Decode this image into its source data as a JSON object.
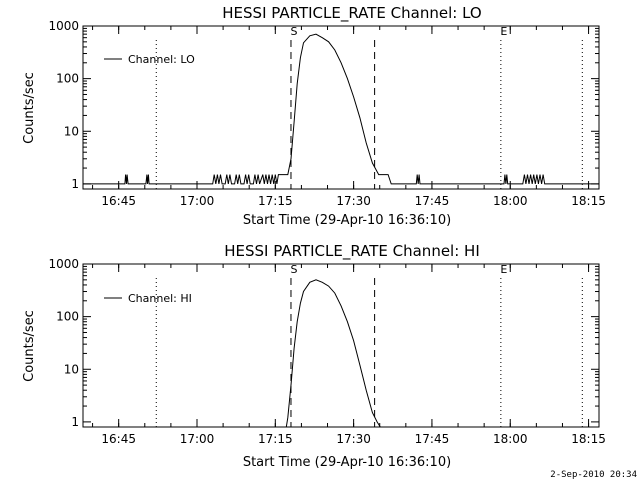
{
  "footer_timestamp": "2-Sep-2010 20:34",
  "chart_data": [
    {
      "type": "line",
      "title": "HESSI PARTICLE_RATE Channel: LO",
      "xlabel": "Start Time (29-Apr-10 16:36:10)",
      "ylabel": "Counts/sec",
      "yscale": "log",
      "xlim": [
        16.6361,
        18.2833
      ],
      "ylim": [
        0.8,
        1000
      ],
      "xticks": [
        {
          "value": 16.75,
          "label": "16:45"
        },
        {
          "value": 17.0,
          "label": "17:00"
        },
        {
          "value": 17.25,
          "label": "17:15"
        },
        {
          "value": 17.5,
          "label": "17:30"
        },
        {
          "value": 17.75,
          "label": "17:45"
        },
        {
          "value": 18.0,
          "label": "18:00"
        },
        {
          "value": 18.25,
          "label": "18:15"
        }
      ],
      "yticks": [
        {
          "value": 1,
          "label": "1"
        },
        {
          "value": 10,
          "label": "10"
        },
        {
          "value": 100,
          "label": "100"
        },
        {
          "value": 1000,
          "label": "1000"
        }
      ],
      "legend": {
        "position": "top-left",
        "entries": [
          "Channel: LO"
        ]
      },
      "markers": [
        {
          "label": "S",
          "x": 17.3,
          "style": "dashed"
        },
        {
          "label": "",
          "x": 17.567,
          "style": "dashed"
        },
        {
          "label": "",
          "x": 16.87,
          "style": "dotted"
        },
        {
          "label": "E",
          "x": 17.97,
          "style": "dotted"
        },
        {
          "label": "",
          "x": 18.23,
          "style": "dotted"
        }
      ],
      "series": [
        {
          "name": "Channel: LO",
          "x": [
            16.636,
            16.77,
            16.772,
            16.775,
            16.777,
            16.78,
            16.837,
            16.84,
            16.842,
            16.845,
            16.847,
            17.05,
            17.055,
            17.06,
            17.065,
            17.07,
            17.075,
            17.08,
            17.09,
            17.095,
            17.1,
            17.105,
            17.11,
            17.12,
            17.125,
            17.13,
            17.135,
            17.14,
            17.15,
            17.155,
            17.16,
            17.165,
            17.17,
            17.18,
            17.185,
            17.19,
            17.195,
            17.2,
            17.21,
            17.215,
            17.22,
            17.225,
            17.23,
            17.235,
            17.24,
            17.245,
            17.25,
            17.255,
            17.26,
            17.27,
            17.28,
            17.29,
            17.3,
            17.31,
            17.32,
            17.33,
            17.34,
            17.36,
            17.38,
            17.4,
            17.42,
            17.44,
            17.46,
            17.48,
            17.5,
            17.52,
            17.54,
            17.56,
            17.58,
            17.59,
            17.6,
            17.61,
            17.62,
            17.63,
            17.633,
            17.7,
            17.703,
            17.706,
            17.709,
            17.712,
            17.98,
            17.983,
            17.986,
            17.989,
            17.992,
            18.04,
            18.045,
            18.05,
            18.055,
            18.06,
            18.065,
            18.07,
            18.075,
            18.08,
            18.085,
            18.09,
            18.095,
            18.1,
            18.105,
            18.11,
            18.283
          ],
          "y": [
            1,
            1,
            1.5,
            1,
            1.5,
            1,
            1,
            1.5,
            1,
            1.5,
            1,
            1,
            1.5,
            1,
            1.5,
            1,
            1.5,
            1,
            1,
            1.5,
            1,
            1.5,
            1,
            1,
            1.5,
            1,
            1.5,
            1,
            1,
            1.5,
            1,
            1.5,
            1,
            1,
            1.5,
            1,
            1.5,
            1,
            1.5,
            1,
            1.5,
            1,
            1.5,
            1,
            1.5,
            1,
            1.5,
            1,
            1.5,
            1.5,
            1.5,
            1.5,
            3,
            15,
            80,
            250,
            480,
            650,
            700,
            600,
            500,
            350,
            200,
            100,
            45,
            18,
            6,
            2.5,
            1.5,
            1.5,
            1.5,
            1.5,
            1,
            1,
            1,
            1,
            1.5,
            1,
            1.5,
            1,
            1,
            1.5,
            1,
            1.5,
            1,
            1,
            1.5,
            1,
            1.5,
            1,
            1.5,
            1,
            1.5,
            1,
            1.5,
            1,
            1.5,
            1,
            1.5,
            1,
            1
          ]
        }
      ]
    },
    {
      "type": "line",
      "title": "HESSI PARTICLE_RATE Channel: HI",
      "xlabel": "Start Time (29-Apr-10 16:36:10)",
      "ylabel": "Counts/sec",
      "yscale": "log",
      "xlim": [
        16.6361,
        18.2833
      ],
      "ylim": [
        0.8,
        1000
      ],
      "xticks": [
        {
          "value": 16.75,
          "label": "16:45"
        },
        {
          "value": 17.0,
          "label": "17:00"
        },
        {
          "value": 17.25,
          "label": "17:15"
        },
        {
          "value": 17.5,
          "label": "17:30"
        },
        {
          "value": 17.75,
          "label": "17:45"
        },
        {
          "value": 18.0,
          "label": "18:00"
        },
        {
          "value": 18.25,
          "label": "18:15"
        }
      ],
      "yticks": [
        {
          "value": 1,
          "label": "1"
        },
        {
          "value": 10,
          "label": "10"
        },
        {
          "value": 100,
          "label": "100"
        },
        {
          "value": 1000,
          "label": "1000"
        }
      ],
      "legend": {
        "position": "top-left",
        "entries": [
          "Channel: HI"
        ]
      },
      "markers": [
        {
          "label": "S",
          "x": 17.3,
          "style": "dashed"
        },
        {
          "label": "",
          "x": 17.567,
          "style": "dashed"
        },
        {
          "label": "",
          "x": 16.87,
          "style": "dotted"
        },
        {
          "label": "E",
          "x": 17.97,
          "style": "dotted"
        },
        {
          "label": "",
          "x": 18.23,
          "style": "dotted"
        }
      ],
      "series": [
        {
          "name": "Channel: HI",
          "x": [
            17.285,
            17.29,
            17.3,
            17.31,
            17.32,
            17.33,
            17.34,
            17.36,
            17.38,
            17.4,
            17.42,
            17.44,
            17.46,
            17.48,
            17.5,
            17.52,
            17.54,
            17.56,
            17.575,
            17.585
          ],
          "y": [
            0.8,
            1.2,
            5,
            25,
            80,
            180,
            300,
            450,
            500,
            450,
            380,
            280,
            160,
            80,
            35,
            12,
            4,
            1.5,
            1,
            0.8
          ]
        }
      ]
    }
  ]
}
